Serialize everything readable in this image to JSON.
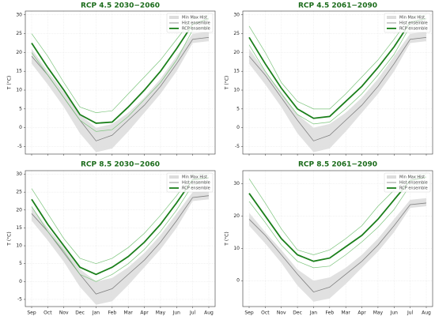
{
  "chart_data": [
    {
      "type": "line",
      "title": "RCP 4.5 2030−2060",
      "ylabel": "T (°C)",
      "ylim": [
        -7,
        31
      ],
      "yticks": [
        -5,
        0,
        5,
        10,
        15,
        20,
        25,
        30
      ],
      "grid": true,
      "legend": "upper right",
      "series": [
        {
          "name": "Min Max Hist",
          "color": "#dcdcdc",
          "lower": [
            17,
            11.5,
            5.5,
            -1.5,
            -6.5,
            -5.5,
            -1,
            4,
            9,
            15,
            22.5,
            23
          ],
          "upper": [
            21,
            15,
            9.5,
            3.5,
            0,
            1,
            4,
            8,
            13,
            19,
            25,
            25.5
          ]
        },
        {
          "name": "Hist ensemble",
          "color": "#808080",
          "values": [
            19,
            14,
            8,
            2,
            -3.5,
            -2,
            2,
            6,
            11,
            17,
            23.5,
            24
          ]
        },
        {
          "color": "#7cc47c",
          "values": [
            25,
            19,
            12,
            5.5,
            4,
            4.5,
            9,
            13.5,
            18,
            23.5,
            29,
            30
          ]
        },
        {
          "color": "#7cc47c",
          "values": [
            20,
            14,
            8,
            2,
            -1,
            -0.5,
            3,
            7.5,
            12,
            18,
            26,
            27
          ]
        },
        {
          "name": "RCP ensemble",
          "color": "#1a7f1a",
          "values": [
            22.5,
            16,
            10,
            3.5,
            1.2,
            1.5,
            5.5,
            10,
            15,
            21,
            27.5,
            29
          ]
        }
      ]
    },
    {
      "type": "line",
      "title": "RCP 4.5 2061−2090",
      "ylabel": "T (°C)",
      "ylim": [
        -7,
        31
      ],
      "yticks": [
        -5,
        0,
        5,
        10,
        15,
        20,
        25,
        30
      ],
      "grid": true,
      "legend": "upper right",
      "series": [
        {
          "name": "Min Max Hist",
          "color": "#dcdcdc",
          "lower": [
            17,
            11.5,
            5.5,
            -1.5,
            -6.5,
            -5.5,
            -1,
            4,
            9,
            15,
            22.5,
            23
          ],
          "upper": [
            21,
            15,
            9.5,
            3.5,
            0,
            1,
            4,
            8,
            13,
            19,
            25,
            25.5
          ]
        },
        {
          "name": "Hist ensemble",
          "color": "#808080",
          "values": [
            19,
            14,
            8,
            2,
            -3.5,
            -2,
            2,
            6,
            11,
            17,
            23.5,
            24
          ]
        },
        {
          "color": "#7cc47c",
          "values": [
            27,
            20,
            12,
            7,
            5,
            5,
            9,
            13.5,
            18,
            23.5,
            29.5,
            30
          ]
        },
        {
          "color": "#7cc47c",
          "values": [
            22,
            15,
            9,
            3.5,
            1,
            1.5,
            5,
            9,
            14,
            19.5,
            27,
            28
          ]
        },
        {
          "name": "RCP ensemble",
          "color": "#1a7f1a",
          "values": [
            24,
            17,
            10.5,
            5,
            2.5,
            3,
            7,
            11,
            16,
            21.5,
            28,
            29
          ]
        }
      ]
    },
    {
      "type": "line",
      "title": "RCP 8.5 2030−2060",
      "ylabel": "T (°C)",
      "categories": [
        "Sep",
        "Oct",
        "Nov",
        "Dec",
        "Jan",
        "Feb",
        "Mar",
        "Apr",
        "May",
        "Jun",
        "Jul",
        "Aug"
      ],
      "ylim": [
        -7,
        31
      ],
      "yticks": [
        -5,
        0,
        5,
        10,
        15,
        20,
        25,
        30
      ],
      "grid": true,
      "legend": "upper right",
      "series": [
        {
          "name": "Min Max Hist",
          "color": "#dcdcdc",
          "lower": [
            17,
            11.5,
            5.5,
            -1.5,
            -6.5,
            -5.5,
            -1,
            4,
            9,
            15,
            22.5,
            23
          ],
          "upper": [
            21,
            15,
            9.5,
            3.5,
            0,
            1,
            4,
            8,
            13,
            19,
            25,
            25.5
          ]
        },
        {
          "name": "Hist ensemble",
          "color": "#808080",
          "values": [
            19,
            14,
            8,
            2,
            -3.5,
            -2,
            2,
            6,
            11,
            17,
            23.5,
            24
          ]
        },
        {
          "color": "#7cc47c",
          "values": [
            26,
            19,
            12,
            6.5,
            5,
            6.5,
            9.5,
            13.5,
            18.5,
            24,
            30,
            30
          ]
        },
        {
          "color": "#7cc47c",
          "values": [
            21,
            14,
            8.5,
            2,
            0,
            2,
            5,
            9,
            14,
            20,
            27,
            28
          ]
        },
        {
          "name": "RCP ensemble",
          "color": "#1a7f1a",
          "values": [
            23,
            16,
            10,
            4,
            2,
            4,
            7,
            11,
            16,
            22,
            28.5,
            29
          ]
        }
      ]
    },
    {
      "type": "line",
      "title": "RCP 8.5 2061−2090",
      "ylabel": "T (°C)",
      "categories": [
        "Sep",
        "Oct",
        "Nov",
        "Dec",
        "Jan",
        "Feb",
        "Mar",
        "Apr",
        "May",
        "Jun",
        "Jul",
        "Aug"
      ],
      "ylim": [
        -8,
        34
      ],
      "yticks": [
        0,
        10,
        20,
        30
      ],
      "grid": true,
      "legend": "upper right",
      "series": [
        {
          "name": "Min Max Hist",
          "color": "#dcdcdc",
          "lower": [
            17,
            11.5,
            5.5,
            -1.5,
            -6.5,
            -5.5,
            -1,
            4,
            9,
            15,
            22.5,
            23
          ],
          "upper": [
            21,
            15,
            9.5,
            3.5,
            0,
            1,
            4,
            8,
            13,
            19,
            25,
            25.5
          ]
        },
        {
          "name": "Hist ensemble",
          "color": "#808080",
          "values": [
            19,
            14,
            8,
            2,
            -3.5,
            -2,
            2,
            6,
            11,
            17,
            23.5,
            24
          ]
        },
        {
          "color": "#7cc47c",
          "values": [
            31.5,
            24,
            16,
            9.5,
            8,
            9.5,
            13,
            17,
            23,
            28,
            32,
            33
          ]
        },
        {
          "color": "#7cc47c",
          "values": [
            24.5,
            18,
            11,
            6,
            4,
            4.5,
            8,
            12,
            16.5,
            22,
            29.5,
            30
          ]
        },
        {
          "name": "RCP ensemble",
          "color": "#1a7f1a",
          "values": [
            27,
            20,
            13,
            8,
            6,
            7,
            10.5,
            14,
            19,
            25,
            31,
            32
          ]
        }
      ]
    }
  ]
}
